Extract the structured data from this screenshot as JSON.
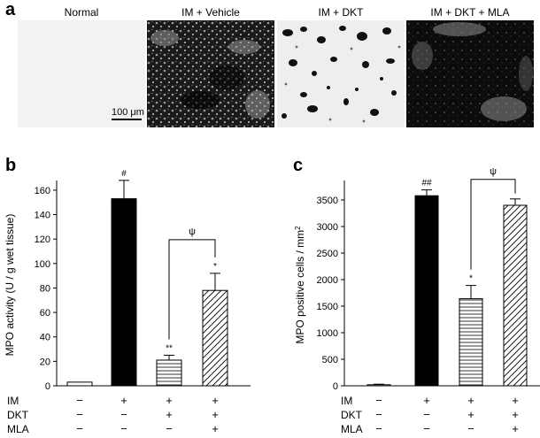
{
  "panel_a": {
    "letter": "a",
    "images": [
      {
        "label": "Normal"
      },
      {
        "label": "IM + Vehicle"
      },
      {
        "label": "IM + DKT"
      },
      {
        "label": "IM + DKT + MLA"
      }
    ],
    "scale_bar": "100 μm"
  },
  "chart_data": [
    {
      "panel": "b",
      "type": "bar",
      "ylabel": "MPO activity (U / g wet tissue)",
      "ylim": [
        0,
        165
      ],
      "yticks": [
        "0",
        "20",
        "40",
        "60",
        "80",
        "100",
        "120",
        "140",
        "160"
      ],
      "values": [
        3,
        153,
        21,
        78
      ],
      "errors": [
        0,
        15,
        4,
        14
      ],
      "patterns": [
        "open",
        "solid",
        "horizontal",
        "diagonal"
      ],
      "markers": [
        "",
        "#",
        "**",
        "*"
      ],
      "significance": {
        "label": "ψ",
        "between": [
          2,
          3
        ]
      },
      "condition_rows": [
        {
          "label": "IM",
          "signs": [
            "−",
            "+",
            "+",
            "+"
          ]
        },
        {
          "label": "DKT",
          "signs": [
            "−",
            "−",
            "+",
            "+"
          ]
        },
        {
          "label": "MLA",
          "signs": [
            "−",
            "−",
            "−",
            "+"
          ]
        }
      ]
    },
    {
      "panel": "c",
      "type": "bar",
      "ylabel": "MPO positive cells / mm2",
      "ylim": [
        0,
        3800
      ],
      "yticks": [
        "0",
        "500",
        "1000",
        "1500",
        "2000",
        "2500",
        "3000",
        "3500"
      ],
      "values": [
        20,
        3580,
        1640,
        3400
      ],
      "errors": [
        10,
        110,
        250,
        120
      ],
      "patterns": [
        "open",
        "solid",
        "horizontal",
        "diagonal"
      ],
      "markers": [
        "",
        "##",
        "*",
        ""
      ],
      "significance": {
        "label": "ψ",
        "between": [
          2,
          3
        ]
      },
      "condition_rows": [
        {
          "label": "IM",
          "signs": [
            "−",
            "+",
            "+",
            "+"
          ]
        },
        {
          "label": "DKT",
          "signs": [
            "−",
            "−",
            "+",
            "+"
          ]
        },
        {
          "label": "MLA",
          "signs": [
            "−",
            "−",
            "−",
            "+"
          ]
        }
      ]
    }
  ]
}
